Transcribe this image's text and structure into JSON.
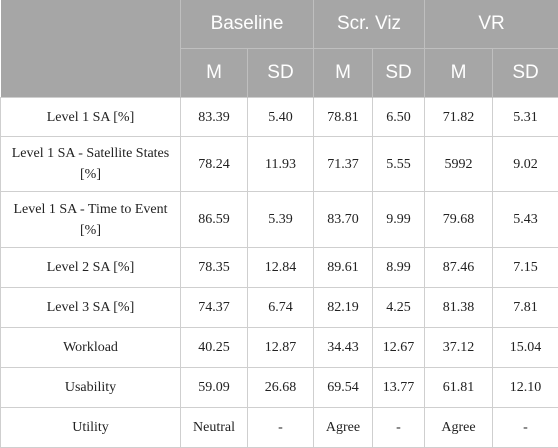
{
  "header": {
    "groups": [
      "Baseline",
      "Scr. Viz",
      "VR"
    ],
    "subheaders": [
      "M",
      "SD",
      "M",
      "SD",
      "M",
      "SD"
    ]
  },
  "rows": [
    {
      "label": "Level 1 SA [%]",
      "values": [
        "83.39",
        "5.40",
        "78.81",
        "6.50",
        "71.82",
        "5.31"
      ]
    },
    {
      "label": "Level 1 SA - Satellite States [%]",
      "values": [
        "78.24",
        "11.93",
        "71.37",
        "5.55",
        "5992",
        "9.02"
      ]
    },
    {
      "label": "Level 1 SA - Time to Event [%]",
      "values": [
        "86.59",
        "5.39",
        "83.70",
        "9.99",
        "79.68",
        "5.43"
      ]
    },
    {
      "label": "Level 2 SA [%]",
      "values": [
        "78.35",
        "12.84",
        "89.61",
        "8.99",
        "87.46",
        "7.15"
      ]
    },
    {
      "label": "Level 3 SA [%]",
      "values": [
        "74.37",
        "6.74",
        "82.19",
        "4.25",
        "81.38",
        "7.81"
      ]
    },
    {
      "label": "Workload",
      "values": [
        "40.25",
        "12.87",
        "34.43",
        "12.67",
        "37.12",
        "15.04"
      ]
    },
    {
      "label": "Usability",
      "values": [
        "59.09",
        "26.68",
        "69.54",
        "13.77",
        "61.81",
        "12.10"
      ]
    },
    {
      "label": "Utility",
      "values": [
        "Neutral",
        "-",
        "Agree",
        "-",
        "Agree",
        "-"
      ]
    }
  ]
}
